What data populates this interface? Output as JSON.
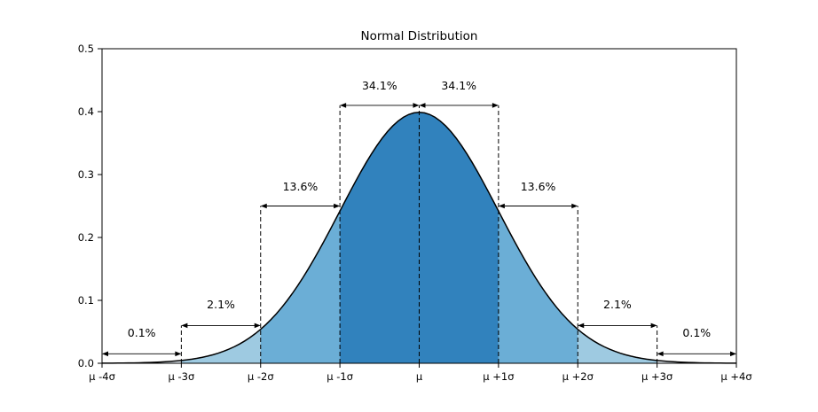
{
  "page": {
    "background": "#ffffff"
  },
  "chart_data": {
    "type": "area",
    "title": "Normal Distribution",
    "distribution": "standard normal pdf",
    "xlim": [
      -4,
      4
    ],
    "ylim": [
      0,
      0.5
    ],
    "peak_value": 0.3989,
    "curve_color": "#000000",
    "line_width": 1.5,
    "x_tick_positions": [
      -4,
      -3,
      -2,
      -1,
      0,
      1,
      2,
      3,
      4
    ],
    "x_tick_labels": [
      "μ -4σ",
      "μ -3σ",
      "μ -2σ",
      "μ -1σ",
      "μ",
      "μ +1σ",
      "μ +2σ",
      "μ +3σ",
      "μ +4σ"
    ],
    "y_tick_positions": [
      0,
      0.1,
      0.2,
      0.3,
      0.4,
      0.5
    ],
    "y_tick_labels": [
      "0.0",
      "0.1",
      "0.2",
      "0.3",
      "0.4",
      "0.5"
    ],
    "regions": [
      {
        "from": -4,
        "to": -3,
        "percent": "0.1%",
        "color": "#e9f2f9"
      },
      {
        "from": -3,
        "to": -2,
        "percent": "2.1%",
        "color": "#9ecae1"
      },
      {
        "from": -2,
        "to": -1,
        "percent": "13.6%",
        "color": "#6baed6"
      },
      {
        "from": -1,
        "to": 0,
        "percent": "34.1%",
        "color": "#3182bd"
      },
      {
        "from": 0,
        "to": 1,
        "percent": "34.1%",
        "color": "#3182bd"
      },
      {
        "from": 1,
        "to": 2,
        "percent": "13.6%",
        "color": "#6baed6"
      },
      {
        "from": 2,
        "to": 3,
        "percent": "2.1%",
        "color": "#9ecae1"
      },
      {
        "from": 3,
        "to": 4,
        "percent": "0.1%",
        "color": "#e9f2f9"
      }
    ],
    "dashed_lines": [
      {
        "z": -3,
        "top": 0.06
      },
      {
        "z": -2,
        "top": 0.25
      },
      {
        "z": -1,
        "top": 0.41
      },
      {
        "z": 0,
        "top": 0.41
      },
      {
        "z": 1,
        "top": 0.41
      },
      {
        "z": 2,
        "top": 0.25
      },
      {
        "z": 3,
        "top": 0.06
      }
    ],
    "annotations": [
      {
        "label": "34.1%",
        "z_from": -1,
        "z_to": 0,
        "arrow_y": 0.41,
        "text_y": 0.435
      },
      {
        "label": "34.1%",
        "z_from": 0,
        "z_to": 1,
        "arrow_y": 0.41,
        "text_y": 0.435
      },
      {
        "label": "13.6%",
        "z_from": -2,
        "z_to": -1,
        "arrow_y": 0.25,
        "text_y": 0.275
      },
      {
        "label": "13.6%",
        "z_from": 1,
        "z_to": 2,
        "arrow_y": 0.25,
        "text_y": 0.275
      },
      {
        "label": "2.1%",
        "z_from": -3,
        "z_to": -2,
        "arrow_y": 0.06,
        "text_y": 0.087
      },
      {
        "label": "2.1%",
        "z_from": 2,
        "z_to": 3,
        "arrow_y": 0.06,
        "text_y": 0.087
      },
      {
        "label": "0.1%",
        "z_from": -4,
        "z_to": -3,
        "arrow_y": 0.015,
        "text_y": 0.042
      },
      {
        "label": "0.1%",
        "z_from": 3,
        "z_to": 4,
        "arrow_y": 0.015,
        "text_y": 0.042
      }
    ]
  }
}
